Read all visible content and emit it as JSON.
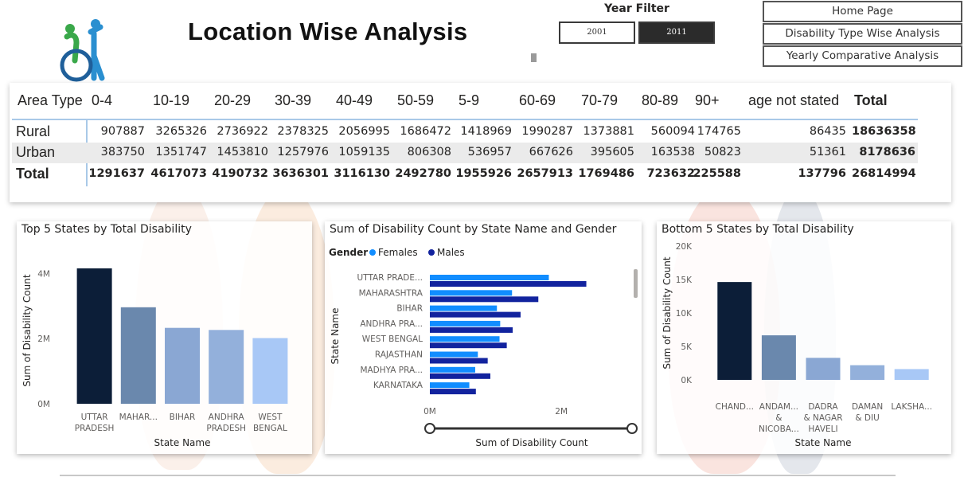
{
  "header": {
    "title": "Location Wise Analysis",
    "year_filter_label": "Year Filter",
    "years": [
      {
        "label": "2001",
        "selected": false
      },
      {
        "label": "2011",
        "selected": true
      }
    ],
    "nav": [
      "Home Page",
      "Disability Type Wise Analysis",
      "Yearly Comparative Analysis"
    ]
  },
  "matrix": {
    "corner": "Area Type",
    "columns": [
      "0-4",
      "10-19",
      "20-29",
      "30-39",
      "40-49",
      "50-59",
      "5-9",
      "60-69",
      "70-79",
      "80-89",
      "90+",
      "age not stated",
      "Total"
    ],
    "rows": [
      {
        "label": "Rural",
        "values": [
          "907887",
          "3265326",
          "2736922",
          "2378325",
          "2056995",
          "1686472",
          "1418969",
          "1990287",
          "1373881",
          "560094",
          "174765",
          "86435",
          "18636358"
        ]
      },
      {
        "label": "Urban",
        "values": [
          "383750",
          "1351747",
          "1453810",
          "1257976",
          "1059135",
          "806308",
          "536957",
          "667626",
          "395605",
          "163538",
          "50823",
          "51361",
          "8178636"
        ]
      },
      {
        "label": "Total",
        "values": [
          "1291637",
          "4617073",
          "4190732",
          "3636301",
          "3116130",
          "2492780",
          "1955926",
          "2657913",
          "1769486",
          "723632",
          "225588",
          "137796",
          "26814994"
        ]
      }
    ]
  },
  "chart_data": [
    {
      "type": "bar",
      "title": "Top 5 States by Total Disability",
      "xlabel": "State Name",
      "ylabel": "Sum of Disability Count",
      "categories": [
        [
          "UTTAR",
          "PRADESH"
        ],
        [
          "MAHAR..."
        ],
        [
          "BIHAR"
        ],
        [
          "ANDHRA",
          "PRADESH"
        ],
        [
          "WEST",
          "BENGAL"
        ]
      ],
      "values": [
        4157514,
        2963392,
        2331009,
        2266607,
        2017406
      ],
      "ylim": [
        0,
        4500000
      ],
      "yticks": [
        {
          "v": 0,
          "label": "0M"
        },
        {
          "v": 2000000,
          "label": "2M"
        },
        {
          "v": 4000000,
          "label": "4M"
        }
      ],
      "colors": [
        "#0c1e38",
        "#6a88ad",
        "#8aa7d3",
        "#93b0db",
        "#a8c8f6"
      ]
    },
    {
      "type": "bar",
      "orientation": "horizontal",
      "title": "Sum of Disability Count by State Name and Gender",
      "xlabel": "Sum of Disability Count",
      "ylabel": "State Name",
      "legend_title": "Gender",
      "categories": [
        "UTTAR PRADE...",
        "MAHARASHTRA",
        "BIHAR",
        "ANDHRA PRA...",
        "WEST BENGAL",
        "RAJASTHAN",
        "MADHYA PRA...",
        "KARNATAKA"
      ],
      "series": [
        {
          "name": "Females",
          "color": "#118dff",
          "values": [
            1810000,
            1250000,
            1020000,
            1070000,
            1060000,
            730000,
            690000,
            600000
          ]
        },
        {
          "name": "Males",
          "color": "#12239e",
          "values": [
            2380000,
            1650000,
            1380000,
            1260000,
            1170000,
            880000,
            920000,
            700000
          ]
        }
      ],
      "xlim": [
        0,
        3100000
      ],
      "xticks": [
        {
          "v": 0,
          "label": "0M"
        },
        {
          "v": 2000000,
          "label": "2M"
        }
      ]
    },
    {
      "type": "bar",
      "title": "Bottom 5 States by Total Disability",
      "xlabel": "State Name",
      "ylabel": "Sum of Disability Count",
      "categories": [
        [
          "CHAND..."
        ],
        [
          "ANDAM...",
          "&",
          "NICOBA..."
        ],
        [
          "DADRA",
          "& NAGAR",
          "HAVELI"
        ],
        [
          "DAMAN",
          "& DIU"
        ],
        [
          "LAKSHA..."
        ]
      ],
      "values": [
        14628,
        6660,
        3294,
        2196,
        1615
      ],
      "ylim": [
        0,
        20000
      ],
      "yticks": [
        {
          "v": 0,
          "label": "0K"
        },
        {
          "v": 5000,
          "label": "5K"
        },
        {
          "v": 10000,
          "label": "10K"
        },
        {
          "v": 15000,
          "label": "15K"
        },
        {
          "v": 20000,
          "label": "20K"
        }
      ],
      "colors": [
        "#0c1e38",
        "#6a88ad",
        "#8aa7d3",
        "#93b0db",
        "#a8c8f6"
      ]
    }
  ]
}
